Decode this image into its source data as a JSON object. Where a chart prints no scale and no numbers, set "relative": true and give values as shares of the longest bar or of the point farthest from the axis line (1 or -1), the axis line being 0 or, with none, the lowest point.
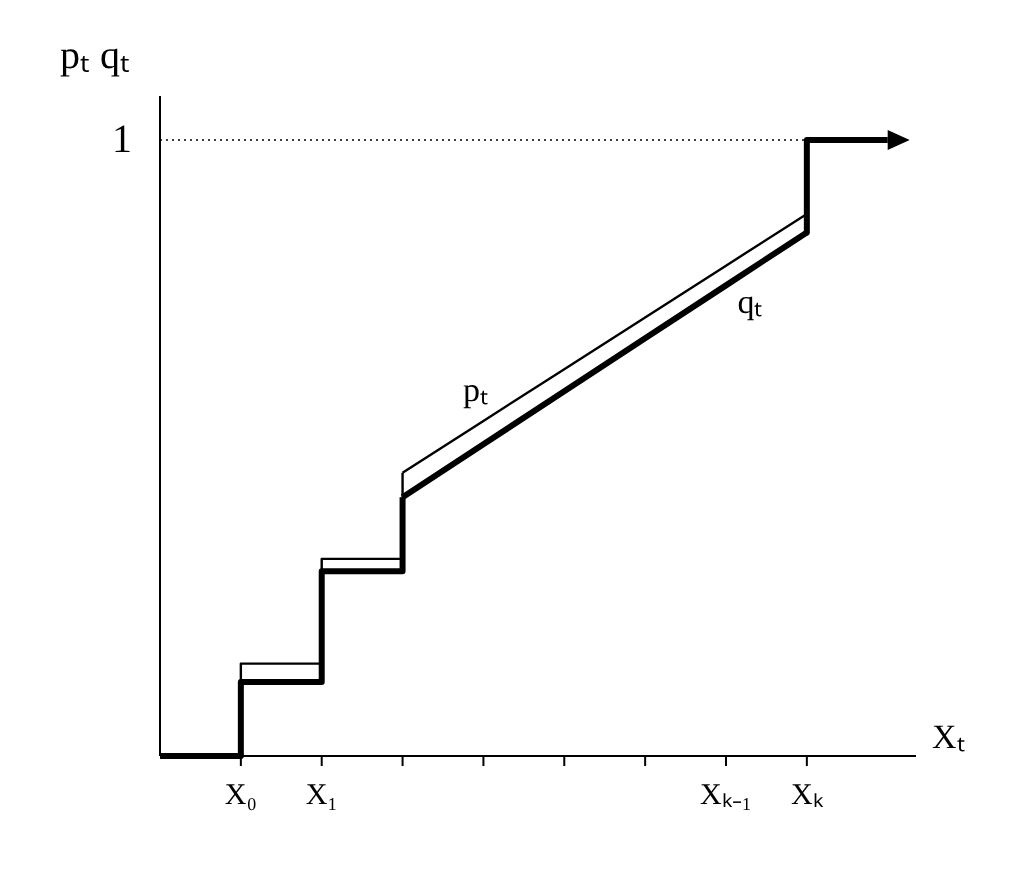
{
  "chart_data": {
    "type": "line",
    "relative": true,
    "xlabel": "Xₜ",
    "ylabel": "pₜ qₜ",
    "categories": [
      null,
      "X₀",
      "X₁",
      null,
      null,
      null,
      null,
      "Xₖ₋₁",
      "Xₖ",
      null
    ],
    "series": [
      {
        "type": "step",
        "color": "#000000",
        "values": [
          0,
          0.15,
          0.32,
          0.46,
          null,
          null,
          null,
          null,
          null,
          null
        ]
      },
      {
        "name": "pₜ",
        "color": "#000000",
        "values": [
          null,
          null,
          null,
          0.46,
          0.544,
          0.628,
          0.712,
          0.796,
          0.88,
          null
        ]
      },
      {
        "type": "step",
        "color": "#000000",
        "values": [
          0,
          0.12,
          0.3,
          0.42,
          null,
          null,
          null,
          null,
          null,
          null
        ]
      },
      {
        "name": "qₜ",
        "color": "#000000",
        "values": [
          null,
          null,
          null,
          0.42,
          0.506,
          0.592,
          0.678,
          0.764,
          0.85,
          null
        ]
      },
      {
        "color": "#000000",
        "values": [
          null,
          null,
          null,
          null,
          null,
          null,
          null,
          null,
          1,
          1
        ]
      }
    ],
    "ref_lines": [
      {
        "axis": "y",
        "value": 1,
        "label": "1",
        "line_style": "dotted"
      }
    ]
  }
}
